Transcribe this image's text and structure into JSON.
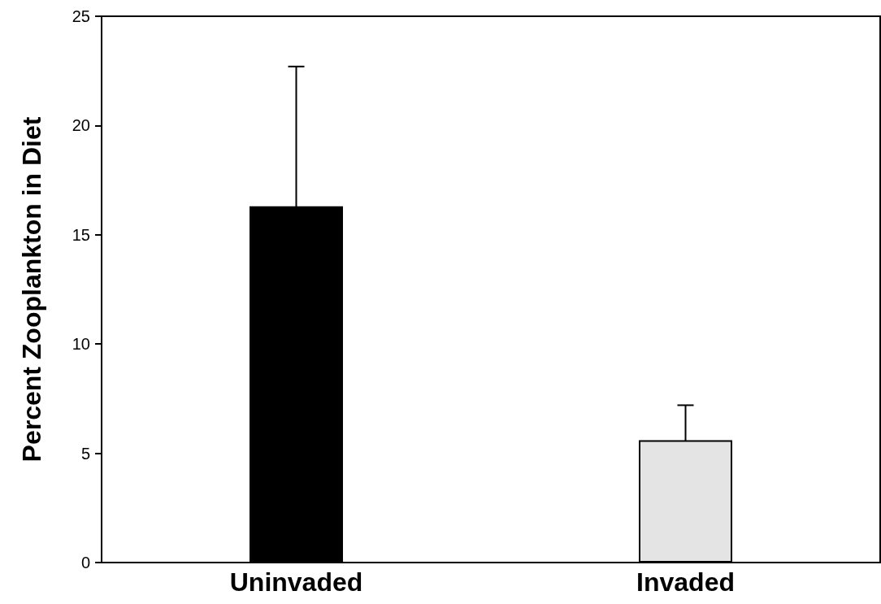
{
  "chart_data": {
    "type": "bar",
    "ylabel": "Percent Zooplankton in Diet",
    "categories": [
      "Uninvaded",
      "Invaded"
    ],
    "values": [
      16.3,
      5.6
    ],
    "errors": [
      6.4,
      1.6
    ],
    "colors": [
      "#000000",
      "#e4e4e4"
    ],
    "ylim": [
      0,
      25
    ],
    "yticks": [
      0,
      5,
      10,
      15,
      20,
      25
    ],
    "grid": false
  }
}
